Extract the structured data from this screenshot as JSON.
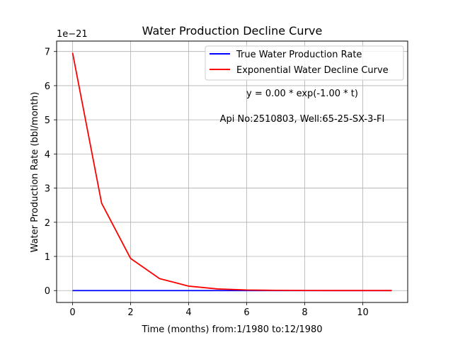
{
  "chart_data": {
    "type": "line",
    "title": "Water Production Decline Curve",
    "xlabel": "Time (months) from:1/1980 to:12/1980",
    "ylabel": "Water Production Rate (bbl/month)",
    "y_offset_label": "1e−21",
    "xlim": [
      -0.55,
      11.55
    ],
    "ylim": [
      -0.348,
      7.305
    ],
    "x_ticks": [
      0,
      2,
      4,
      6,
      8,
      10
    ],
    "x_tick_labels": [
      "0",
      "2",
      "4",
      "6",
      "8",
      "10"
    ],
    "y_ticks": [
      0,
      1,
      2,
      3,
      4,
      5,
      6,
      7
    ],
    "y_tick_labels": [
      "0",
      "1",
      "2",
      "3",
      "4",
      "5",
      "6",
      "7"
    ],
    "grid": true,
    "legend_position": "top-right",
    "x": [
      0,
      1,
      2,
      3,
      4,
      5,
      6,
      7,
      8,
      9,
      10,
      11
    ],
    "series": [
      {
        "name": "True Water Production Rate",
        "color": "#0000ff",
        "values": [
          0,
          0,
          0,
          0,
          0,
          0,
          0,
          0,
          0,
          0,
          0,
          0
        ]
      },
      {
        "name": "Exponential Water Decline Curve",
        "color": "#ff0000",
        "values": [
          6.96,
          2.56,
          0.94,
          0.35,
          0.13,
          0.047,
          0.017,
          0.0064,
          0.0023,
          0.00086,
          0.00032,
          0.00012
        ]
      }
    ],
    "annotations": [
      "y = 0.00 * exp(-1.00 * t)",
      "Api No:2510803, Well:65-25-SX-3-FI"
    ]
  }
}
